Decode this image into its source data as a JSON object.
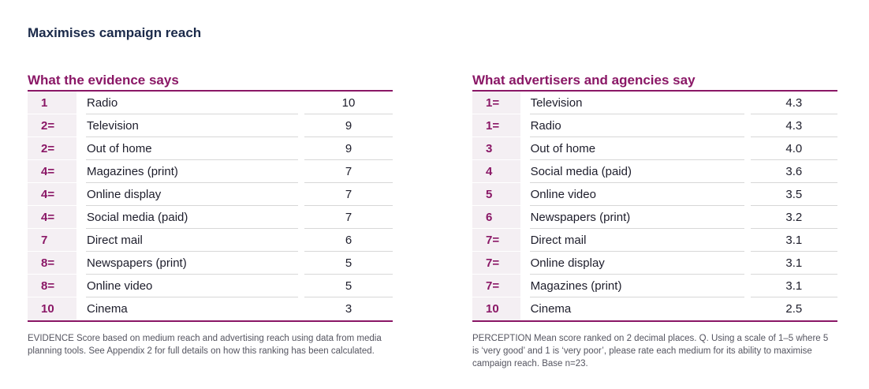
{
  "page_title": "Maximises campaign reach",
  "left_panel": {
    "title": "What the evidence says",
    "rows": [
      {
        "rank": "1",
        "medium": "Radio",
        "score": "10"
      },
      {
        "rank": "2=",
        "medium": "Television",
        "score": "9"
      },
      {
        "rank": "2=",
        "medium": "Out of home",
        "score": "9"
      },
      {
        "rank": "4=",
        "medium": "Magazines (print)",
        "score": "7"
      },
      {
        "rank": "4=",
        "medium": "Online display",
        "score": "7"
      },
      {
        "rank": "4=",
        "medium": "Social media (paid)",
        "score": "7"
      },
      {
        "rank": "7",
        "medium": "Direct mail",
        "score": "6"
      },
      {
        "rank": "8=",
        "medium": "Newspapers (print)",
        "score": "5"
      },
      {
        "rank": "8=",
        "medium": "Online video",
        "score": "5"
      },
      {
        "rank": "10",
        "medium": "Cinema",
        "score": "3"
      }
    ],
    "note": "EVIDENCE  Score based on medium reach and advertising reach using data from media planning tools. See Appendix 2 for full details on how this ranking has been calculated."
  },
  "right_panel": {
    "title": "What advertisers and agencies say",
    "rows": [
      {
        "rank": "1=",
        "medium": "Television",
        "score": "4.3"
      },
      {
        "rank": "1=",
        "medium": "Radio",
        "score": "4.3"
      },
      {
        "rank": "3",
        "medium": "Out of home",
        "score": "4.0"
      },
      {
        "rank": "4",
        "medium": "Social media (paid)",
        "score": "3.6"
      },
      {
        "rank": "5",
        "medium": "Online video",
        "score": "3.5"
      },
      {
        "rank": "6",
        "medium": "Newspapers (print)",
        "score": "3.2"
      },
      {
        "rank": "7=",
        "medium": "Direct mail",
        "score": "3.1"
      },
      {
        "rank": "7=",
        "medium": "Online display",
        "score": "3.1"
      },
      {
        "rank": "7=",
        "medium": "Magazines (print)",
        "score": "3.1"
      },
      {
        "rank": "10",
        "medium": "Cinema",
        "score": "2.5"
      }
    ],
    "note": "PERCEPTION  Mean score ranked on 2 decimal places. Q. Using a scale of 1–5 where 5 is ‘very good’ and 1 is ‘very poor’, please rate each medium for its ability to maximise campaign reach. Base n=23."
  },
  "colors": {
    "accent": "#8a1766",
    "title": "#1b2a4a",
    "rank_bg": "#f4eff3",
    "divider": "#d7d7d7"
  }
}
